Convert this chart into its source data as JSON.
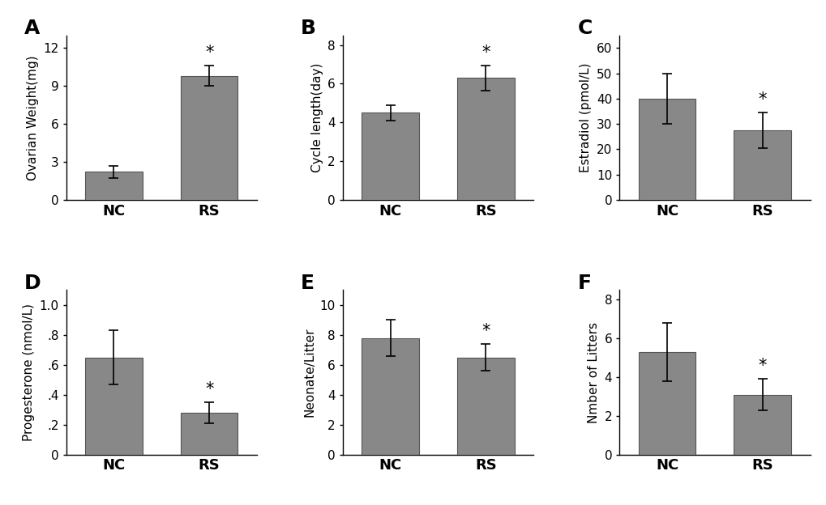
{
  "panels": [
    {
      "label": "A",
      "ylabel": "Ovarian Weight(mg)",
      "categories": [
        "NC",
        "RS"
      ],
      "values": [
        2.2,
        9.8
      ],
      "errors": [
        0.5,
        0.8
      ],
      "ylim": [
        0,
        13
      ],
      "yticks": [
        0,
        3,
        6,
        9,
        12
      ],
      "ytick_labels": [
        "0",
        "3",
        "6",
        "9",
        "12"
      ],
      "sig_idx": 1
    },
    {
      "label": "B",
      "ylabel": "Cycle length(day)",
      "categories": [
        "NC",
        "RS"
      ],
      "values": [
        4.5,
        6.3
      ],
      "errors": [
        0.4,
        0.65
      ],
      "ylim": [
        0,
        8.5
      ],
      "yticks": [
        0,
        2,
        4,
        6,
        8
      ],
      "ytick_labels": [
        "0",
        "2",
        "4",
        "6",
        "8"
      ],
      "sig_idx": 1
    },
    {
      "label": "C",
      "ylabel": "Estradiol (pmol/L)",
      "categories": [
        "NC",
        "RS"
      ],
      "values": [
        40.0,
        27.5
      ],
      "errors": [
        10.0,
        7.0
      ],
      "ylim": [
        0,
        65
      ],
      "yticks": [
        0,
        10,
        20,
        30,
        40,
        50,
        60
      ],
      "ytick_labels": [
        "0",
        "10",
        "20",
        "30",
        "40",
        "50",
        "60"
      ],
      "sig_idx": 1
    },
    {
      "label": "D",
      "ylabel": "Progesterone (nmol/L)",
      "categories": [
        "NC",
        "RS"
      ],
      "values": [
        0.65,
        0.28
      ],
      "errors": [
        0.18,
        0.07
      ],
      "ylim": [
        0,
        1.1
      ],
      "yticks": [
        0.0,
        0.2,
        0.4,
        0.6,
        0.8,
        1.0
      ],
      "ytick_labels": [
        "0",
        ".2",
        ".4",
        ".6",
        ".8",
        "1.0"
      ],
      "sig_idx": 1
    },
    {
      "label": "E",
      "ylabel": "Neonate/Litter",
      "categories": [
        "NC",
        "RS"
      ],
      "values": [
        7.8,
        6.5
      ],
      "errors": [
        1.2,
        0.9
      ],
      "ylim": [
        0,
        11
      ],
      "yticks": [
        0,
        2,
        4,
        6,
        8,
        10
      ],
      "ytick_labels": [
        "0",
        "2",
        "4",
        "6",
        "8",
        "10"
      ],
      "sig_idx": 1
    },
    {
      "label": "F",
      "ylabel": "Nmber of Litters",
      "categories": [
        "NC",
        "RS"
      ],
      "values": [
        5.3,
        3.1
      ],
      "errors": [
        1.5,
        0.8
      ],
      "ylim": [
        0,
        8.5
      ],
      "yticks": [
        0,
        2,
        4,
        6,
        8
      ],
      "ytick_labels": [
        "0",
        "2",
        "4",
        "6",
        "8"
      ],
      "sig_idx": 1
    }
  ],
  "bar_color": "#888888",
  "bar_edge_color": "#555555",
  "background_color": "#ffffff",
  "tick_fontsize": 11,
  "ylabel_fontsize": 11,
  "xtick_fontsize": 13,
  "panel_label_fontsize": 18
}
